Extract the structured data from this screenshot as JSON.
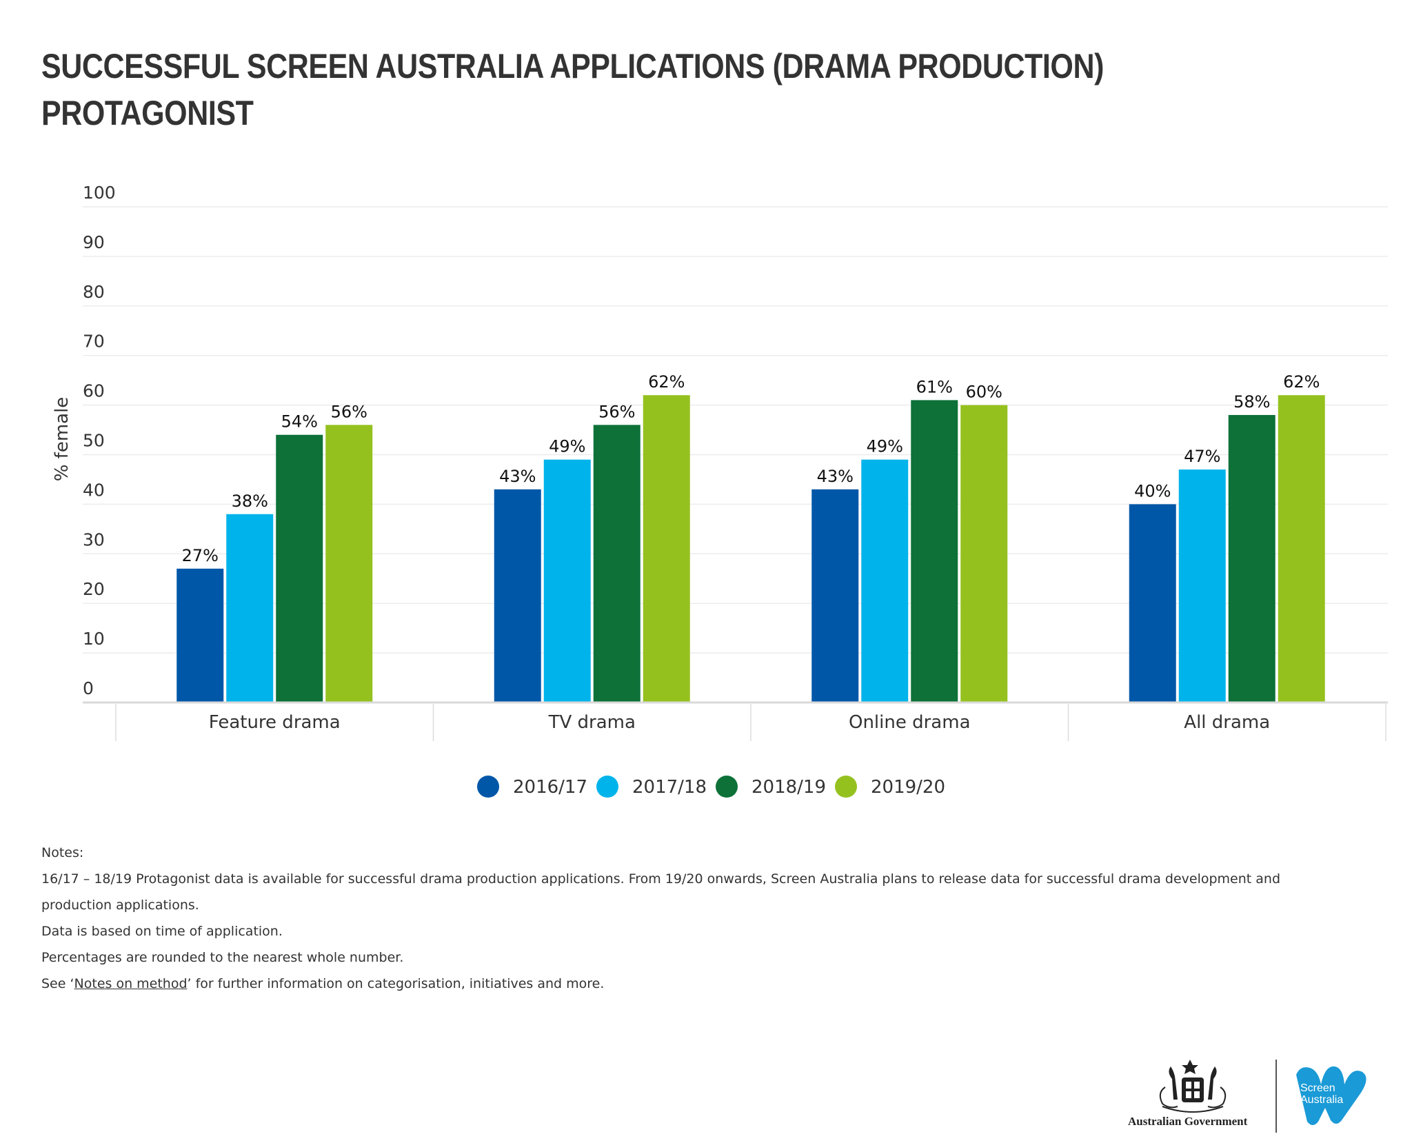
{
  "title_lines": [
    "SUCCESSFUL SCREEN AUSTRALIA APPLICATIONS (DRAMA PRODUCTION)",
    "PROTAGONIST"
  ],
  "chart_data": {
    "type": "bar",
    "ylabel": "% female",
    "xlabel": "",
    "ylim": [
      0,
      100
    ],
    "yticks": [
      0,
      10,
      20,
      30,
      40,
      50,
      60,
      70,
      80,
      90,
      100
    ],
    "grid": true,
    "legend_placement": "bottom-center",
    "categories": [
      "Feature drama",
      "TV drama",
      "Online drama",
      "All drama"
    ],
    "series": [
      {
        "name": "2016/17",
        "color": "#0057a8",
        "values": [
          27,
          43,
          43,
          40
        ],
        "labels": [
          "27%",
          "43%",
          "43%",
          "40%"
        ]
      },
      {
        "name": "2017/18",
        "color": "#00b4eb",
        "values": [
          38,
          49,
          49,
          47
        ],
        "labels": [
          "38%",
          "49%",
          "49%",
          "47%"
        ]
      },
      {
        "name": "2018/19",
        "color": "#0d7138",
        "values": [
          54,
          56,
          61,
          58
        ],
        "labels": [
          "54%",
          "56%",
          "61%",
          "58%"
        ]
      },
      {
        "name": "2019/20",
        "color": "#95c11f",
        "values": [
          56,
          62,
          60,
          62
        ],
        "labels": [
          "56%",
          "62%",
          "60%",
          "62%"
        ]
      }
    ]
  },
  "notes": {
    "heading": "Notes:",
    "line1": "16/17 – 18/19 Protagonist data is available for successful drama production applications. From 19/20 onwards, Screen Australia plans to release data for successful drama development and production applications.",
    "line2": "Data is based on time of application.",
    "line3": "Percentages are rounded to the nearest whole number.",
    "line4_prefix": "See ‘",
    "line4_link": "Notes on method",
    "line4_suffix": "’ for further information on categorisation, initiatives and more."
  },
  "logos": {
    "gov_name": "Australian Government",
    "screen_australia_line1": "Screen",
    "screen_australia_line2": "Australia",
    "sa_color": "#1a9ad6"
  }
}
